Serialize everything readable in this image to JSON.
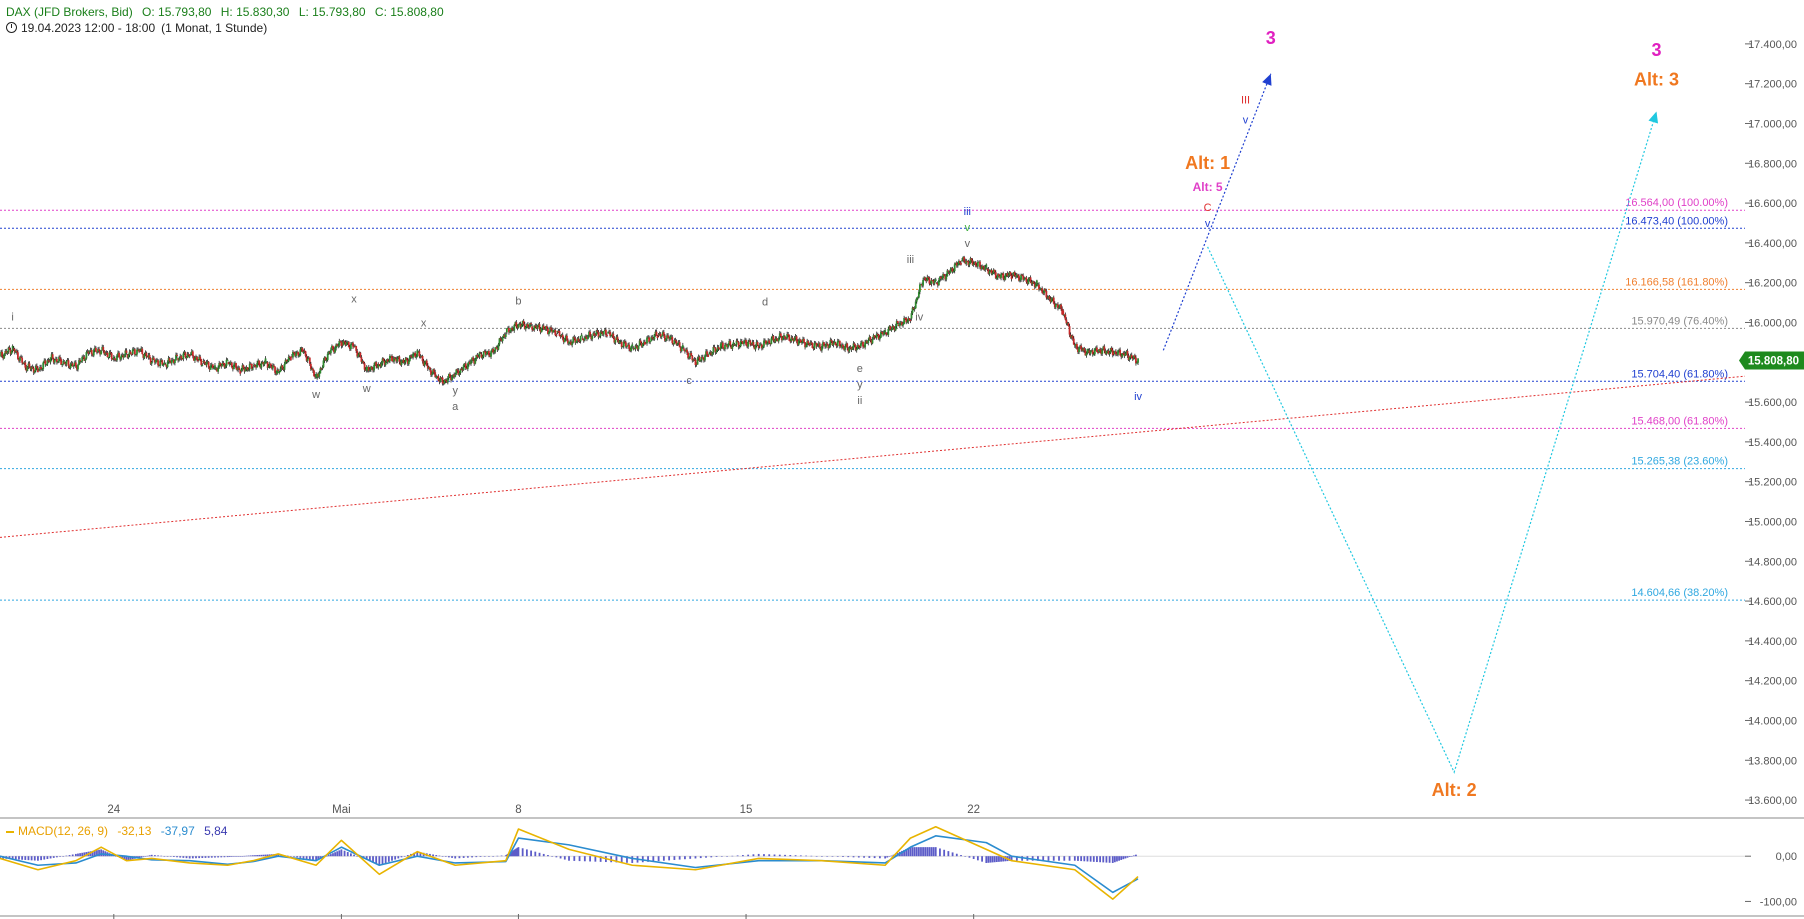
{
  "header": {
    "instrument": "DAX (JFD Brokers, Bid)",
    "open": "O: 15.793,80",
    "high": "H: 15.830,30",
    "low": "L: 15.793,80",
    "close": "C: 15.808,80",
    "date_range": "19.04.2023 12:00 - 18:00",
    "interval": "(1 Monat, 1 Stunde)"
  },
  "colors": {
    "up_candle": "#2e8b2e",
    "down_candle": "#c62828",
    "price_badge": "#1e8a1e",
    "macd_line": "#e8b400",
    "signal_line": "#2b8ccf",
    "histogram": "#5c5cc8",
    "trendline": "#e03030"
  },
  "chart_data": [
    {
      "type": "candlestick",
      "y_axis": {
        "ticks": [
          "17.400,00",
          "17.200,00",
          "17.000,00",
          "16.800,00",
          "16.600,00",
          "16.400,00",
          "16.200,00",
          "16.000,00",
          "15.800,00",
          "15.600,00",
          "15.400,00",
          "15.200,00",
          "15.000,00",
          "14.800,00",
          "14.600,00",
          "14.400,00",
          "14.200,00",
          "14.000,00",
          "13.800,00",
          "13.600,00"
        ],
        "tick_values": [
          17400,
          17200,
          17000,
          16800,
          16600,
          16400,
          16200,
          16000,
          15800,
          15600,
          15400,
          15200,
          15000,
          14800,
          14600,
          14400,
          14200,
          14000,
          13800,
          13600
        ],
        "range": [
          13540,
          17520
        ]
      },
      "x_axis": {
        "labels": [
          "24",
          "Mai",
          "8",
          "15",
          "22"
        ],
        "label_index": [
          9,
          27,
          41,
          59,
          77
        ],
        "range": [
          0,
          138
        ]
      },
      "last_price": "15.808,80",
      "last_value": 15808.8,
      "price_path": [
        [
          0,
          15830
        ],
        [
          1,
          15870
        ],
        [
          2,
          15780
        ],
        [
          3,
          15760
        ],
        [
          4,
          15820
        ],
        [
          5,
          15800
        ],
        [
          6,
          15780
        ],
        [
          7,
          15850
        ],
        [
          8,
          15860
        ],
        [
          9,
          15820
        ],
        [
          10,
          15840
        ],
        [
          11,
          15860
        ],
        [
          12,
          15810
        ],
        [
          13,
          15790
        ],
        [
          14,
          15820
        ],
        [
          15,
          15840
        ],
        [
          16,
          15800
        ],
        [
          17,
          15770
        ],
        [
          18,
          15800
        ],
        [
          19,
          15760
        ],
        [
          20,
          15780
        ],
        [
          21,
          15800
        ],
        [
          22,
          15750
        ],
        [
          23,
          15830
        ],
        [
          24,
          15860
        ],
        [
          25,
          15720
        ],
        [
          26,
          15850
        ],
        [
          27,
          15900
        ],
        [
          28,
          15880
        ],
        [
          29,
          15760
        ],
        [
          30,
          15790
        ],
        [
          31,
          15820
        ],
        [
          32,
          15800
        ],
        [
          33,
          15850
        ],
        [
          34,
          15760
        ],
        [
          35,
          15700
        ],
        [
          36,
          15740
        ],
        [
          37,
          15790
        ],
        [
          38,
          15840
        ],
        [
          39,
          15850
        ],
        [
          40,
          15950
        ],
        [
          41,
          15990
        ],
        [
          42,
          15980
        ],
        [
          43,
          15970
        ],
        [
          44,
          15950
        ],
        [
          45,
          15900
        ],
        [
          46,
          15920
        ],
        [
          47,
          15940
        ],
        [
          48,
          15950
        ],
        [
          49,
          15900
        ],
        [
          50,
          15870
        ],
        [
          51,
          15900
        ],
        [
          52,
          15940
        ],
        [
          53,
          15920
        ],
        [
          54,
          15870
        ],
        [
          55,
          15800
        ],
        [
          56,
          15840
        ],
        [
          57,
          15880
        ],
        [
          58,
          15890
        ],
        [
          59,
          15900
        ],
        [
          60,
          15880
        ],
        [
          61,
          15910
        ],
        [
          62,
          15930
        ],
        [
          63,
          15910
        ],
        [
          64,
          15890
        ],
        [
          65,
          15880
        ],
        [
          66,
          15900
        ],
        [
          67,
          15870
        ],
        [
          68,
          15880
        ],
        [
          69,
          15920
        ],
        [
          70,
          15950
        ],
        [
          71,
          15990
        ],
        [
          72,
          16020
        ],
        [
          73,
          16220
        ],
        [
          74,
          16200
        ],
        [
          75,
          16250
        ],
        [
          76,
          16310
        ],
        [
          77,
          16300
        ],
        [
          78,
          16270
        ],
        [
          79,
          16230
        ],
        [
          80,
          16240
        ],
        [
          81,
          16220
        ],
        [
          82,
          16190
        ],
        [
          83,
          16120
        ],
        [
          84,
          16060
        ],
        [
          85,
          15880
        ],
        [
          86,
          15850
        ],
        [
          87,
          15860
        ],
        [
          88,
          15850
        ],
        [
          89,
          15840
        ],
        [
          90,
          15808
        ]
      ],
      "horizontal_levels": [
        {
          "value": 16564.0,
          "label": "16.564,00 (100.00%)",
          "color": "#e040c8",
          "style": "dotted"
        },
        {
          "value": 16473.4,
          "label": "16.473,40 (100.00%)",
          "color": "#2040d0",
          "style": "dotted"
        },
        {
          "value": 16166.58,
          "label": "16.166,58 (161.80%)",
          "color": "#f08030",
          "style": "dotted"
        },
        {
          "value": 15970.49,
          "label": "15.970,49 (76.40%)",
          "color": "#8a8a8a",
          "style": "dotted"
        },
        {
          "value": 15704.4,
          "label": "15.704,40 (61.80%)",
          "color": "#2040d0",
          "style": "dotted"
        },
        {
          "value": 15468.0,
          "label": "15.468,00 (61.80%)",
          "color": "#e040c8",
          "style": "dotted"
        },
        {
          "value": 15265.38,
          "label": "15.265,38 (23.60%)",
          "color": "#30a8e0",
          "style": "dotted"
        },
        {
          "value": 14604.66,
          "label": "14.604,66 (38.20%)",
          "color": "#30a8e0",
          "style": "dotted"
        }
      ],
      "trendline": {
        "from": [
          0,
          14920
        ],
        "to": [
          138,
          15730
        ]
      },
      "wave_labels": [
        {
          "text": "i",
          "x": 1,
          "y": 16010,
          "color": "#666666"
        },
        {
          "text": "w",
          "x": 25,
          "y": 15620,
          "color": "#666666"
        },
        {
          "text": "x",
          "x": 28,
          "y": 16100,
          "color": "#666666"
        },
        {
          "text": "w",
          "x": 29,
          "y": 15650,
          "color": "#666666"
        },
        {
          "text": "x",
          "x": 33.5,
          "y": 15980,
          "color": "#666666"
        },
        {
          "text": "y",
          "x": 36,
          "y": 15640,
          "color": "#666666"
        },
        {
          "text": "a",
          "x": 36,
          "y": 15560,
          "color": "#666666"
        },
        {
          "text": "b",
          "x": 41,
          "y": 16090,
          "color": "#666666"
        },
        {
          "text": "c",
          "x": 54.5,
          "y": 15690,
          "color": "#666666"
        },
        {
          "text": "d",
          "x": 60.5,
          "y": 16085,
          "color": "#666666"
        },
        {
          "text": "e",
          "x": 68,
          "y": 15750,
          "color": "#666666"
        },
        {
          "text": "y",
          "x": 68,
          "y": 15670,
          "color": "#666666"
        },
        {
          "text": "ii",
          "x": 68,
          "y": 15590,
          "color": "#666666"
        },
        {
          "text": "iii",
          "x": 72,
          "y": 16300,
          "color": "#666666"
        },
        {
          "text": "iv",
          "x": 72.7,
          "y": 16010,
          "color": "#666666"
        },
        {
          "text": "v",
          "x": 76.5,
          "y": 16380,
          "color": "#666666"
        },
        {
          "text": "v",
          "x": 76.5,
          "y": 16460,
          "color": "#40b040"
        },
        {
          "text": "iii",
          "x": 76.5,
          "y": 16540,
          "color": "#2040d0"
        },
        {
          "text": "iv",
          "x": 90,
          "y": 15610,
          "color": "#2040d0"
        },
        {
          "text": "v",
          "x": 95.5,
          "y": 16480,
          "color": "#2040d0"
        },
        {
          "text": "C",
          "x": 95.5,
          "y": 16560,
          "color": "#e03030"
        },
        {
          "text": "Alt: 5",
          "x": 95.5,
          "y": 16660,
          "color": "#e040c8",
          "bold": true,
          "size": 12
        },
        {
          "text": "Alt: 1",
          "x": 95.5,
          "y": 16770,
          "color": "#f07820",
          "bold": true,
          "size": 18
        },
        {
          "text": "v",
          "x": 98.5,
          "y": 17000,
          "color": "#2040d0"
        },
        {
          "text": "III",
          "x": 98.5,
          "y": 17100,
          "color": "#e03030"
        },
        {
          "text": "3",
          "x": 100.5,
          "y": 17400,
          "color": "#e020c0",
          "bold": true,
          "size": 18
        },
        {
          "text": "Alt: 2",
          "x": 115,
          "y": 13620,
          "color": "#f07820",
          "bold": true,
          "size": 18
        },
        {
          "text": "3",
          "x": 131,
          "y": 17340,
          "color": "#e020c0",
          "bold": true,
          "size": 18
        },
        {
          "text": "Alt: 3",
          "x": 131,
          "y": 17190,
          "color": "#f07820",
          "bold": true,
          "size": 18
        }
      ],
      "projections": [
        {
          "points": [
            [
              92,
              15860
            ],
            [
              100.5,
              17250
            ]
          ],
          "color": "#2040d0",
          "arrow": true
        },
        {
          "points": [
            [
              95.5,
              16380
            ],
            [
              115,
              13740
            ],
            [
              131,
              17060
            ]
          ],
          "color": "#20c8e0",
          "arrow": true
        }
      ]
    },
    {
      "type": "line",
      "title": "MACD(12, 26, 9)",
      "values_text": [
        "-32,13",
        "-37,97",
        "5,84"
      ],
      "y_axis": {
        "ticks": [
          "0,00",
          "-100,00"
        ],
        "tick_values": [
          0,
          -100
        ],
        "range": [
          -130,
          80
        ]
      },
      "series": [
        {
          "name": "macd",
          "x": [
            0,
            3,
            6,
            8,
            10,
            12,
            15,
            18,
            20,
            22,
            25,
            27,
            30,
            33,
            36,
            40,
            41,
            45,
            50,
            55,
            60,
            65,
            70,
            72,
            74,
            78,
            80,
            85,
            88,
            90
          ],
          "values": [
            -5,
            -30,
            -10,
            20,
            -10,
            -5,
            -15,
            -20,
            -10,
            5,
            -20,
            35,
            -40,
            10,
            -20,
            -10,
            60,
            15,
            -20,
            -30,
            -5,
            -10,
            -20,
            40,
            65,
            15,
            -10,
            -30,
            -95,
            -45
          ]
        },
        {
          "name": "signal",
          "x": [
            0,
            3,
            6,
            8,
            10,
            12,
            15,
            18,
            20,
            22,
            25,
            27,
            30,
            33,
            36,
            40,
            41,
            45,
            50,
            55,
            60,
            65,
            70,
            72,
            74,
            78,
            80,
            85,
            88,
            90
          ],
          "values": [
            0,
            -20,
            -15,
            5,
            0,
            -8,
            -10,
            -18,
            -12,
            0,
            -10,
            20,
            -20,
            0,
            -15,
            -12,
            40,
            25,
            -5,
            -25,
            -10,
            -10,
            -15,
            20,
            45,
            30,
            0,
            -20,
            -80,
            -50
          ]
        },
        {
          "name": "histogram",
          "x": [
            0,
            3,
            6,
            8,
            10,
            12,
            15,
            18,
            20,
            22,
            25,
            27,
            30,
            33,
            36,
            40,
            41,
            45,
            50,
            55,
            60,
            65,
            70,
            72,
            74,
            78,
            80,
            85,
            88,
            90
          ],
          "values": [
            -5,
            -10,
            5,
            15,
            -10,
            3,
            -5,
            -2,
            2,
            5,
            -10,
            15,
            -20,
            10,
            -5,
            2,
            20,
            -10,
            -15,
            -5,
            5,
            0,
            -5,
            20,
            20,
            -15,
            -10,
            -10,
            -15,
            5
          ]
        }
      ]
    }
  ]
}
